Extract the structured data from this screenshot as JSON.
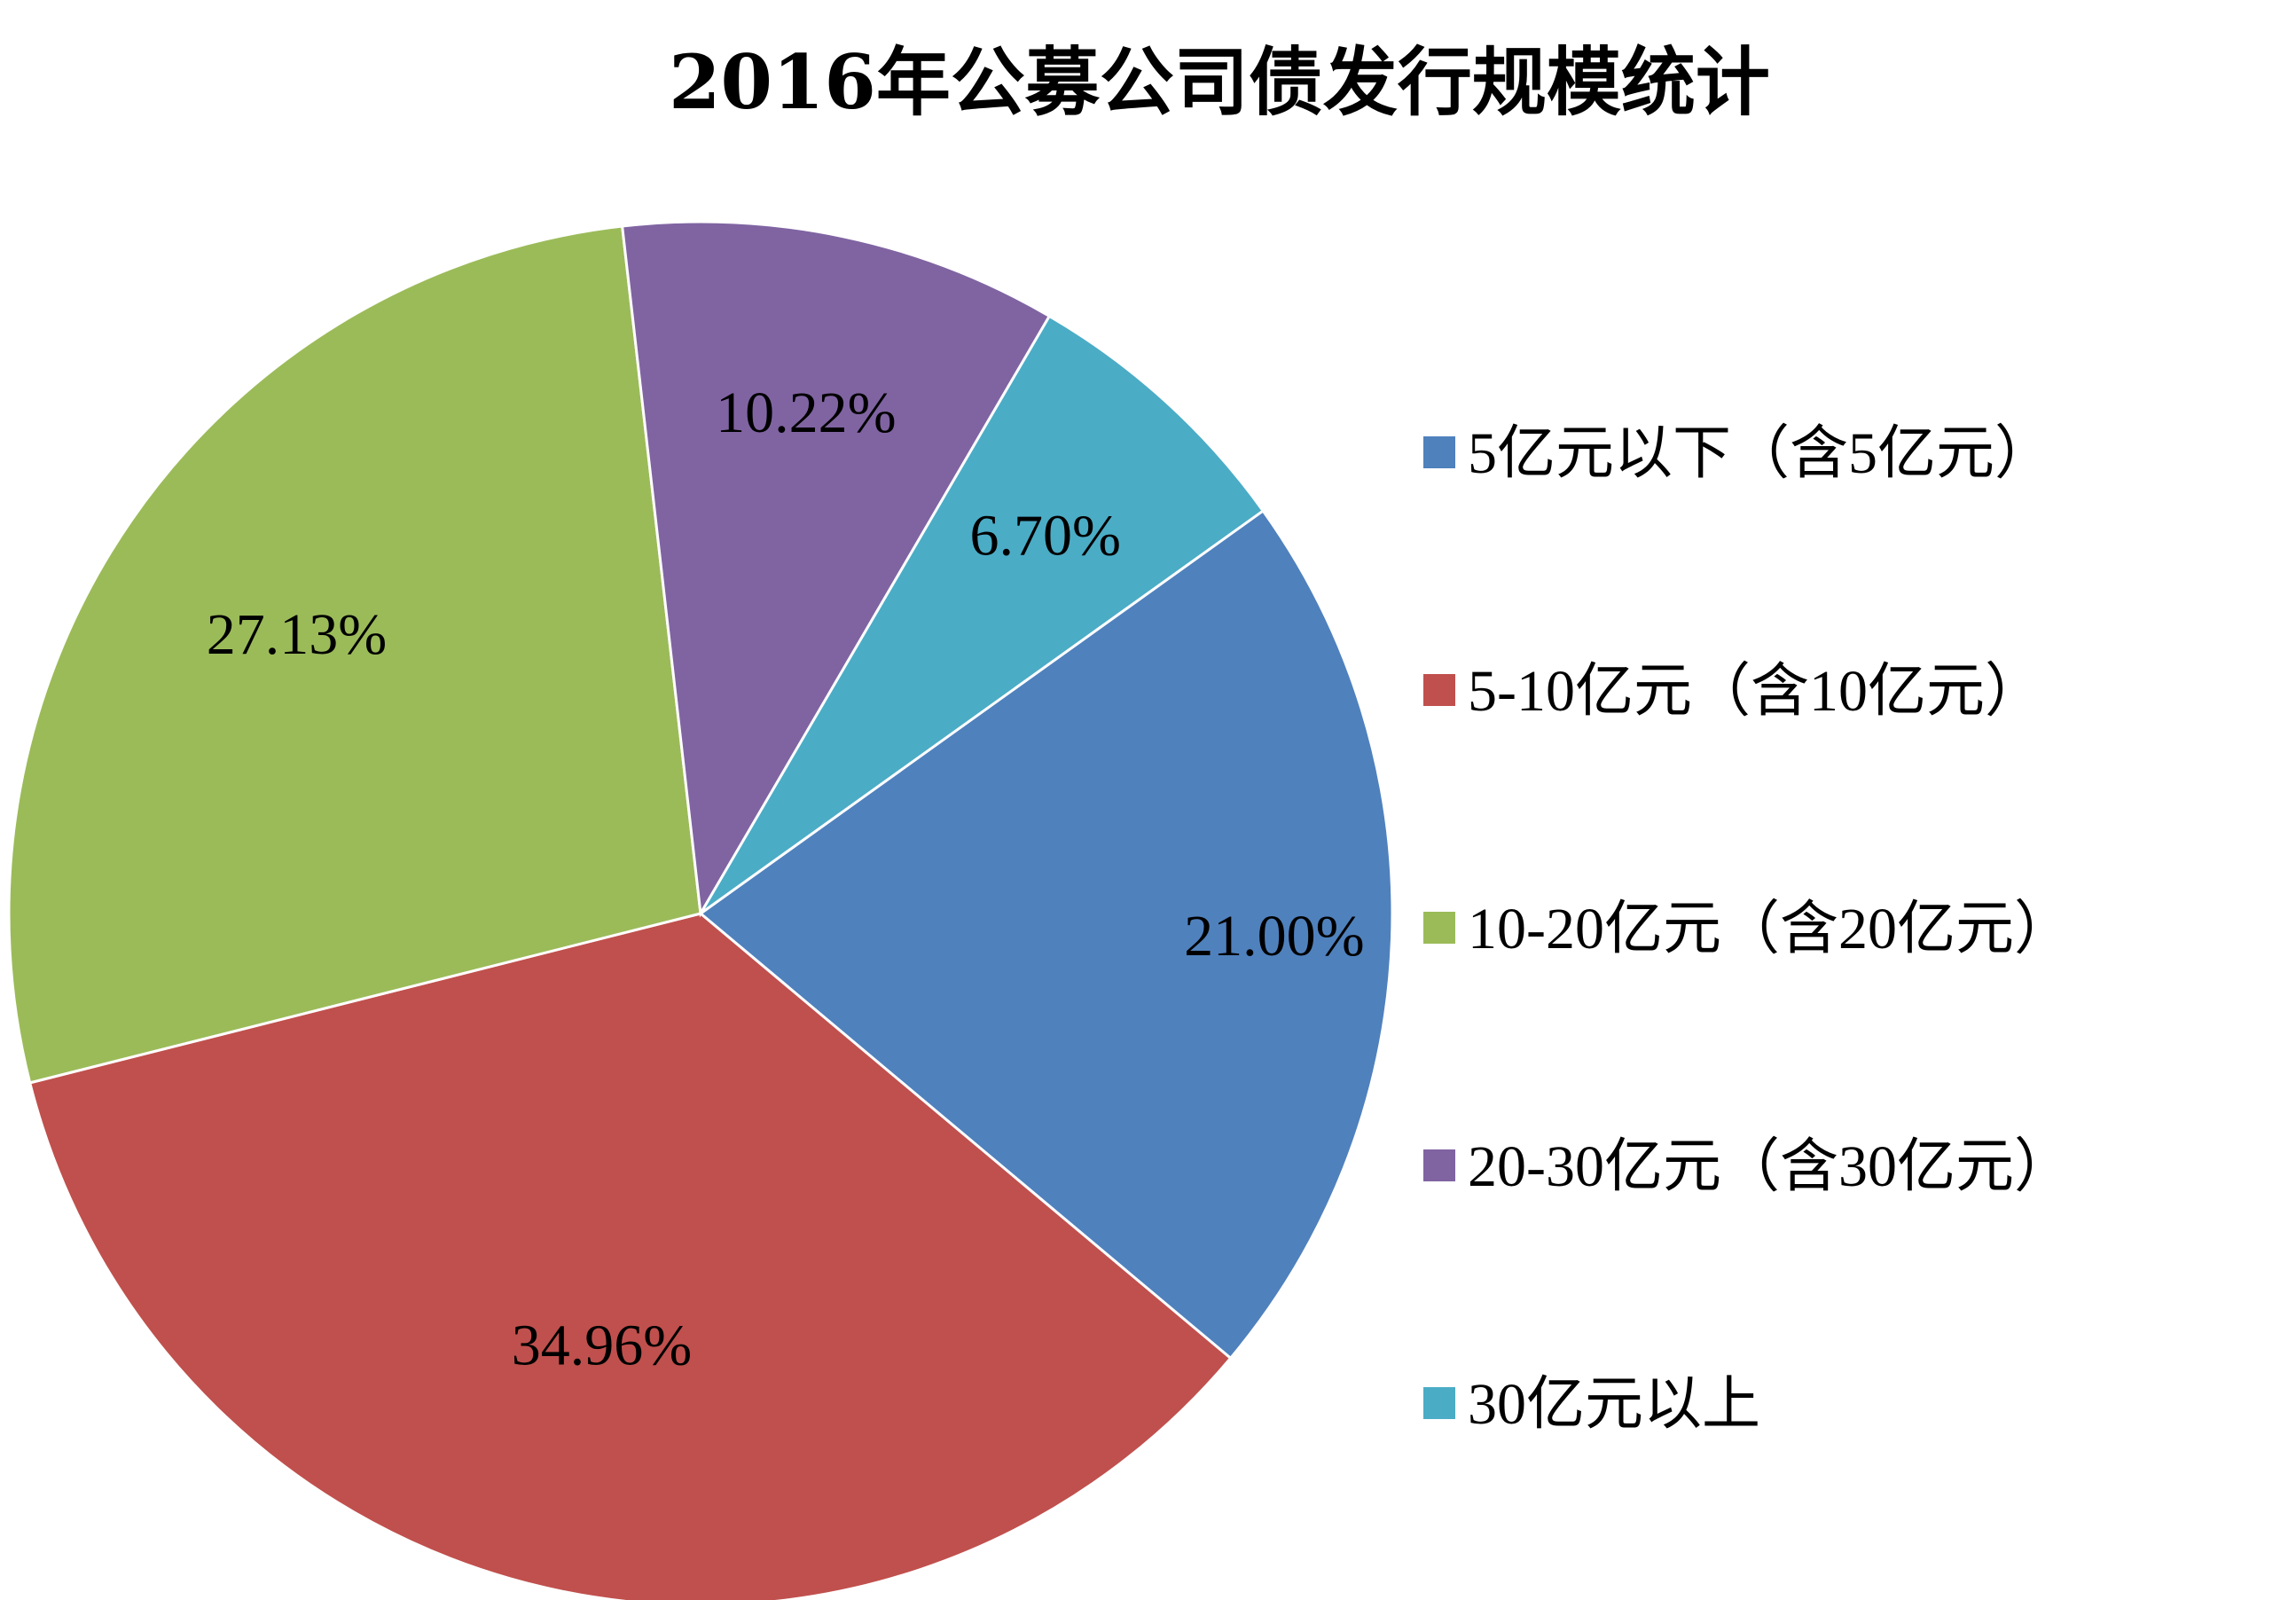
{
  "chart_data": {
    "type": "pie",
    "title": "2016年公募公司债发行规模统计",
    "categories": [
      "5亿元以下（含5亿元）",
      "5-10亿元（含10亿元）",
      "10-20亿元（含20亿元）",
      "20-30亿元（含30亿元）",
      "30亿元以上"
    ],
    "values": [
      21.0,
      34.96,
      27.13,
      10.22,
      6.7
    ],
    "data_labels": [
      "21.00%",
      "34.96%",
      "27.13%",
      "10.22%",
      "6.70%"
    ],
    "colors": [
      "#4F81BD",
      "#C0504D",
      "#9BBB59",
      "#8064A2",
      "#4BACC6"
    ],
    "start_angle_deg": 54.4,
    "direction": "clockwise",
    "legend_position": "right"
  }
}
